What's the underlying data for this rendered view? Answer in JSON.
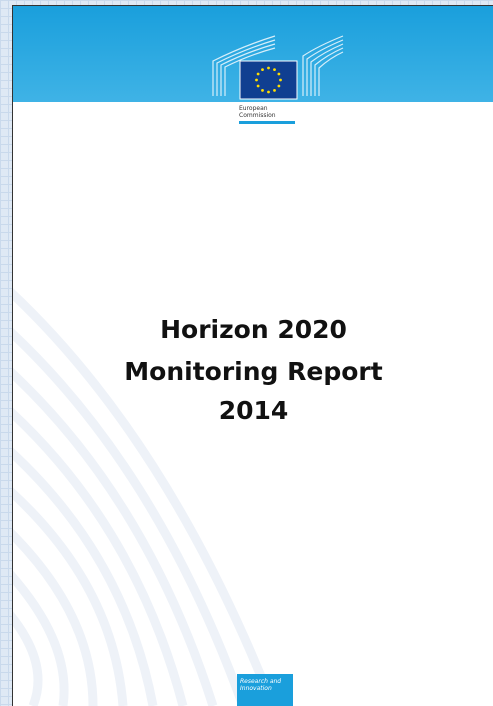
{
  "header": {
    "organization": [
      "European",
      "Commission"
    ]
  },
  "title": {
    "lines": [
      "Horizon 2020",
      "Monitoring Report",
      "2014"
    ]
  },
  "footer": {
    "label": [
      "Research and",
      "Innovation"
    ]
  }
}
